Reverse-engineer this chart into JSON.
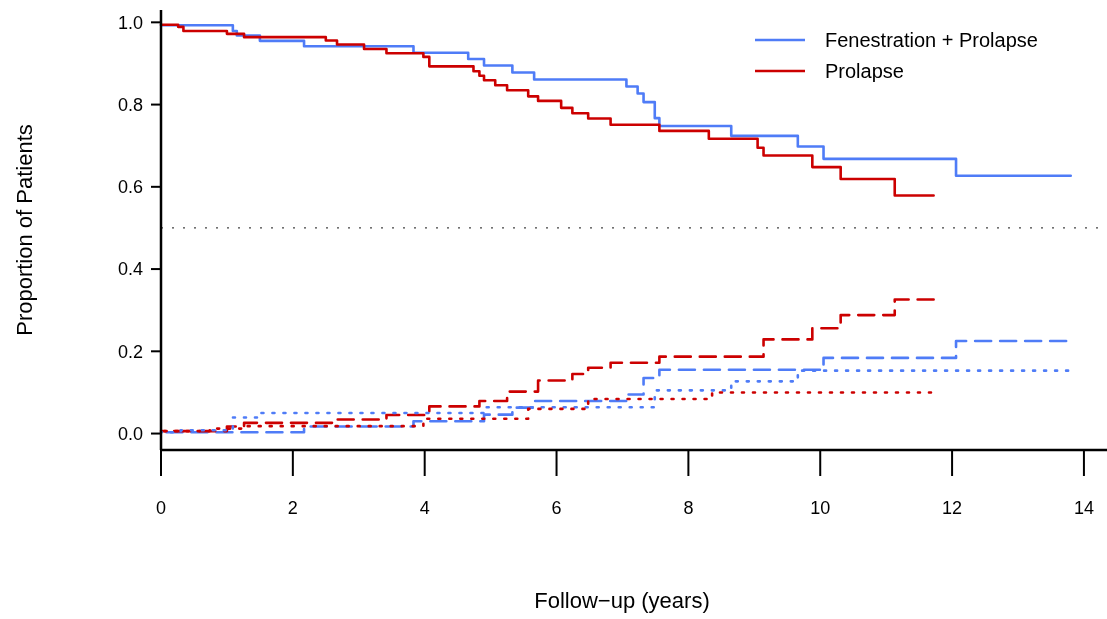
{
  "chart_data": {
    "type": "step",
    "xlabel": "Follow−up (years)",
    "ylabel": "Proportion of Patients",
    "xlim": [
      0,
      14.35
    ],
    "ylim": [
      -0.04,
      1.03
    ],
    "xticks": [
      0,
      2,
      4,
      6,
      8,
      10,
      12,
      14
    ],
    "yticks": [
      {
        "value": 0,
        "label": "0.0"
      },
      {
        "value": 0.2,
        "label": "0.2"
      },
      {
        "value": 0.4,
        "label": "0.4"
      },
      {
        "value": 0.6,
        "label": "0.6"
      },
      {
        "value": 0.8,
        "label": "0.8"
      },
      {
        "value": 1,
        "label": "1.0"
      }
    ],
    "grid": false,
    "legend": "top right",
    "ref_lines": [
      {
        "axis": "y",
        "value": 0.5,
        "color": "#444444",
        "line_style": "dotted"
      }
    ],
    "series": [
      {
        "name": "Fenestration + Prolapse",
        "color": "#4f7cf7",
        "line_style": "solid",
        "x": [
          0,
          1.09,
          1.15,
          1.5,
          2.17,
          3.83,
          4.66,
          4.9,
          5.33,
          5.66,
          7.06,
          7.23,
          7.32,
          7.49,
          7.56,
          8.65,
          9.66,
          10.05,
          12.06,
          13.8
        ],
        "values": [
          0.993,
          0.979,
          0.968,
          0.955,
          0.942,
          0.926,
          0.911,
          0.895,
          0.878,
          0.861,
          0.844,
          0.827,
          0.806,
          0.767,
          0.748,
          0.724,
          0.698,
          0.668,
          0.627,
          0.627
        ]
      },
      {
        "name": "Prolapse",
        "color": "#cc0000",
        "line_style": "solid",
        "x": [
          0,
          0.26,
          0.34,
          1.0,
          1.26,
          2.5,
          2.67,
          3.08,
          3.42,
          3.98,
          4.07,
          4.74,
          4.83,
          4.9,
          5.07,
          5.25,
          5.57,
          5.72,
          6.07,
          6.24,
          6.48,
          6.82,
          7.56,
          8.31,
          9.05,
          9.14,
          9.88,
          10.31,
          11.13,
          11.72
        ],
        "values": [
          0.994,
          0.989,
          0.979,
          0.972,
          0.964,
          0.956,
          0.946,
          0.935,
          0.925,
          0.916,
          0.893,
          0.881,
          0.87,
          0.859,
          0.847,
          0.835,
          0.82,
          0.809,
          0.792,
          0.779,
          0.766,
          0.751,
          0.736,
          0.717,
          0.695,
          0.676,
          0.648,
          0.619,
          0.579,
          0.579
        ]
      },
      {
        "color": "#4f7cf7",
        "line_style": "dashed",
        "x": [
          0,
          2.17,
          3.83,
          4.9,
          5.33,
          5.66,
          7.06,
          7.32,
          7.56,
          10.05,
          12.06,
          13.73
        ],
        "values": [
          0.003,
          0.017,
          0.03,
          0.046,
          0.063,
          0.079,
          0.095,
          0.135,
          0.155,
          0.184,
          0.225,
          0.225
        ]
      },
      {
        "color": "#cc0000",
        "line_style": "dashed",
        "x": [
          0,
          1.0,
          1.26,
          2.67,
          3.42,
          4.07,
          4.83,
          5.25,
          5.72,
          6.24,
          6.48,
          6.82,
          7.56,
          9.14,
          9.88,
          10.31,
          11.13,
          11.72
        ],
        "values": [
          0.006,
          0.017,
          0.026,
          0.034,
          0.045,
          0.066,
          0.079,
          0.102,
          0.129,
          0.145,
          0.16,
          0.172,
          0.187,
          0.229,
          0.256,
          0.288,
          0.326,
          0.326
        ]
      },
      {
        "color": "#4f7cf7",
        "line_style": "dotted",
        "x": [
          0,
          0.3,
          1.09,
          1.5,
          4.9,
          7.49,
          8.65,
          9.66,
          13.76
        ],
        "values": [
          0.003,
          0.008,
          0.039,
          0.05,
          0.064,
          0.105,
          0.127,
          0.153,
          0.153
        ]
      },
      {
        "color": "#cc0000",
        "line_style": "dotted",
        "x": [
          0,
          0.74,
          1.26,
          3.98,
          5.57,
          6.48,
          8.36,
          11.68
        ],
        "values": [
          0.006,
          0.012,
          0.018,
          0.036,
          0.06,
          0.084,
          0.1,
          0.1
        ]
      }
    ]
  }
}
